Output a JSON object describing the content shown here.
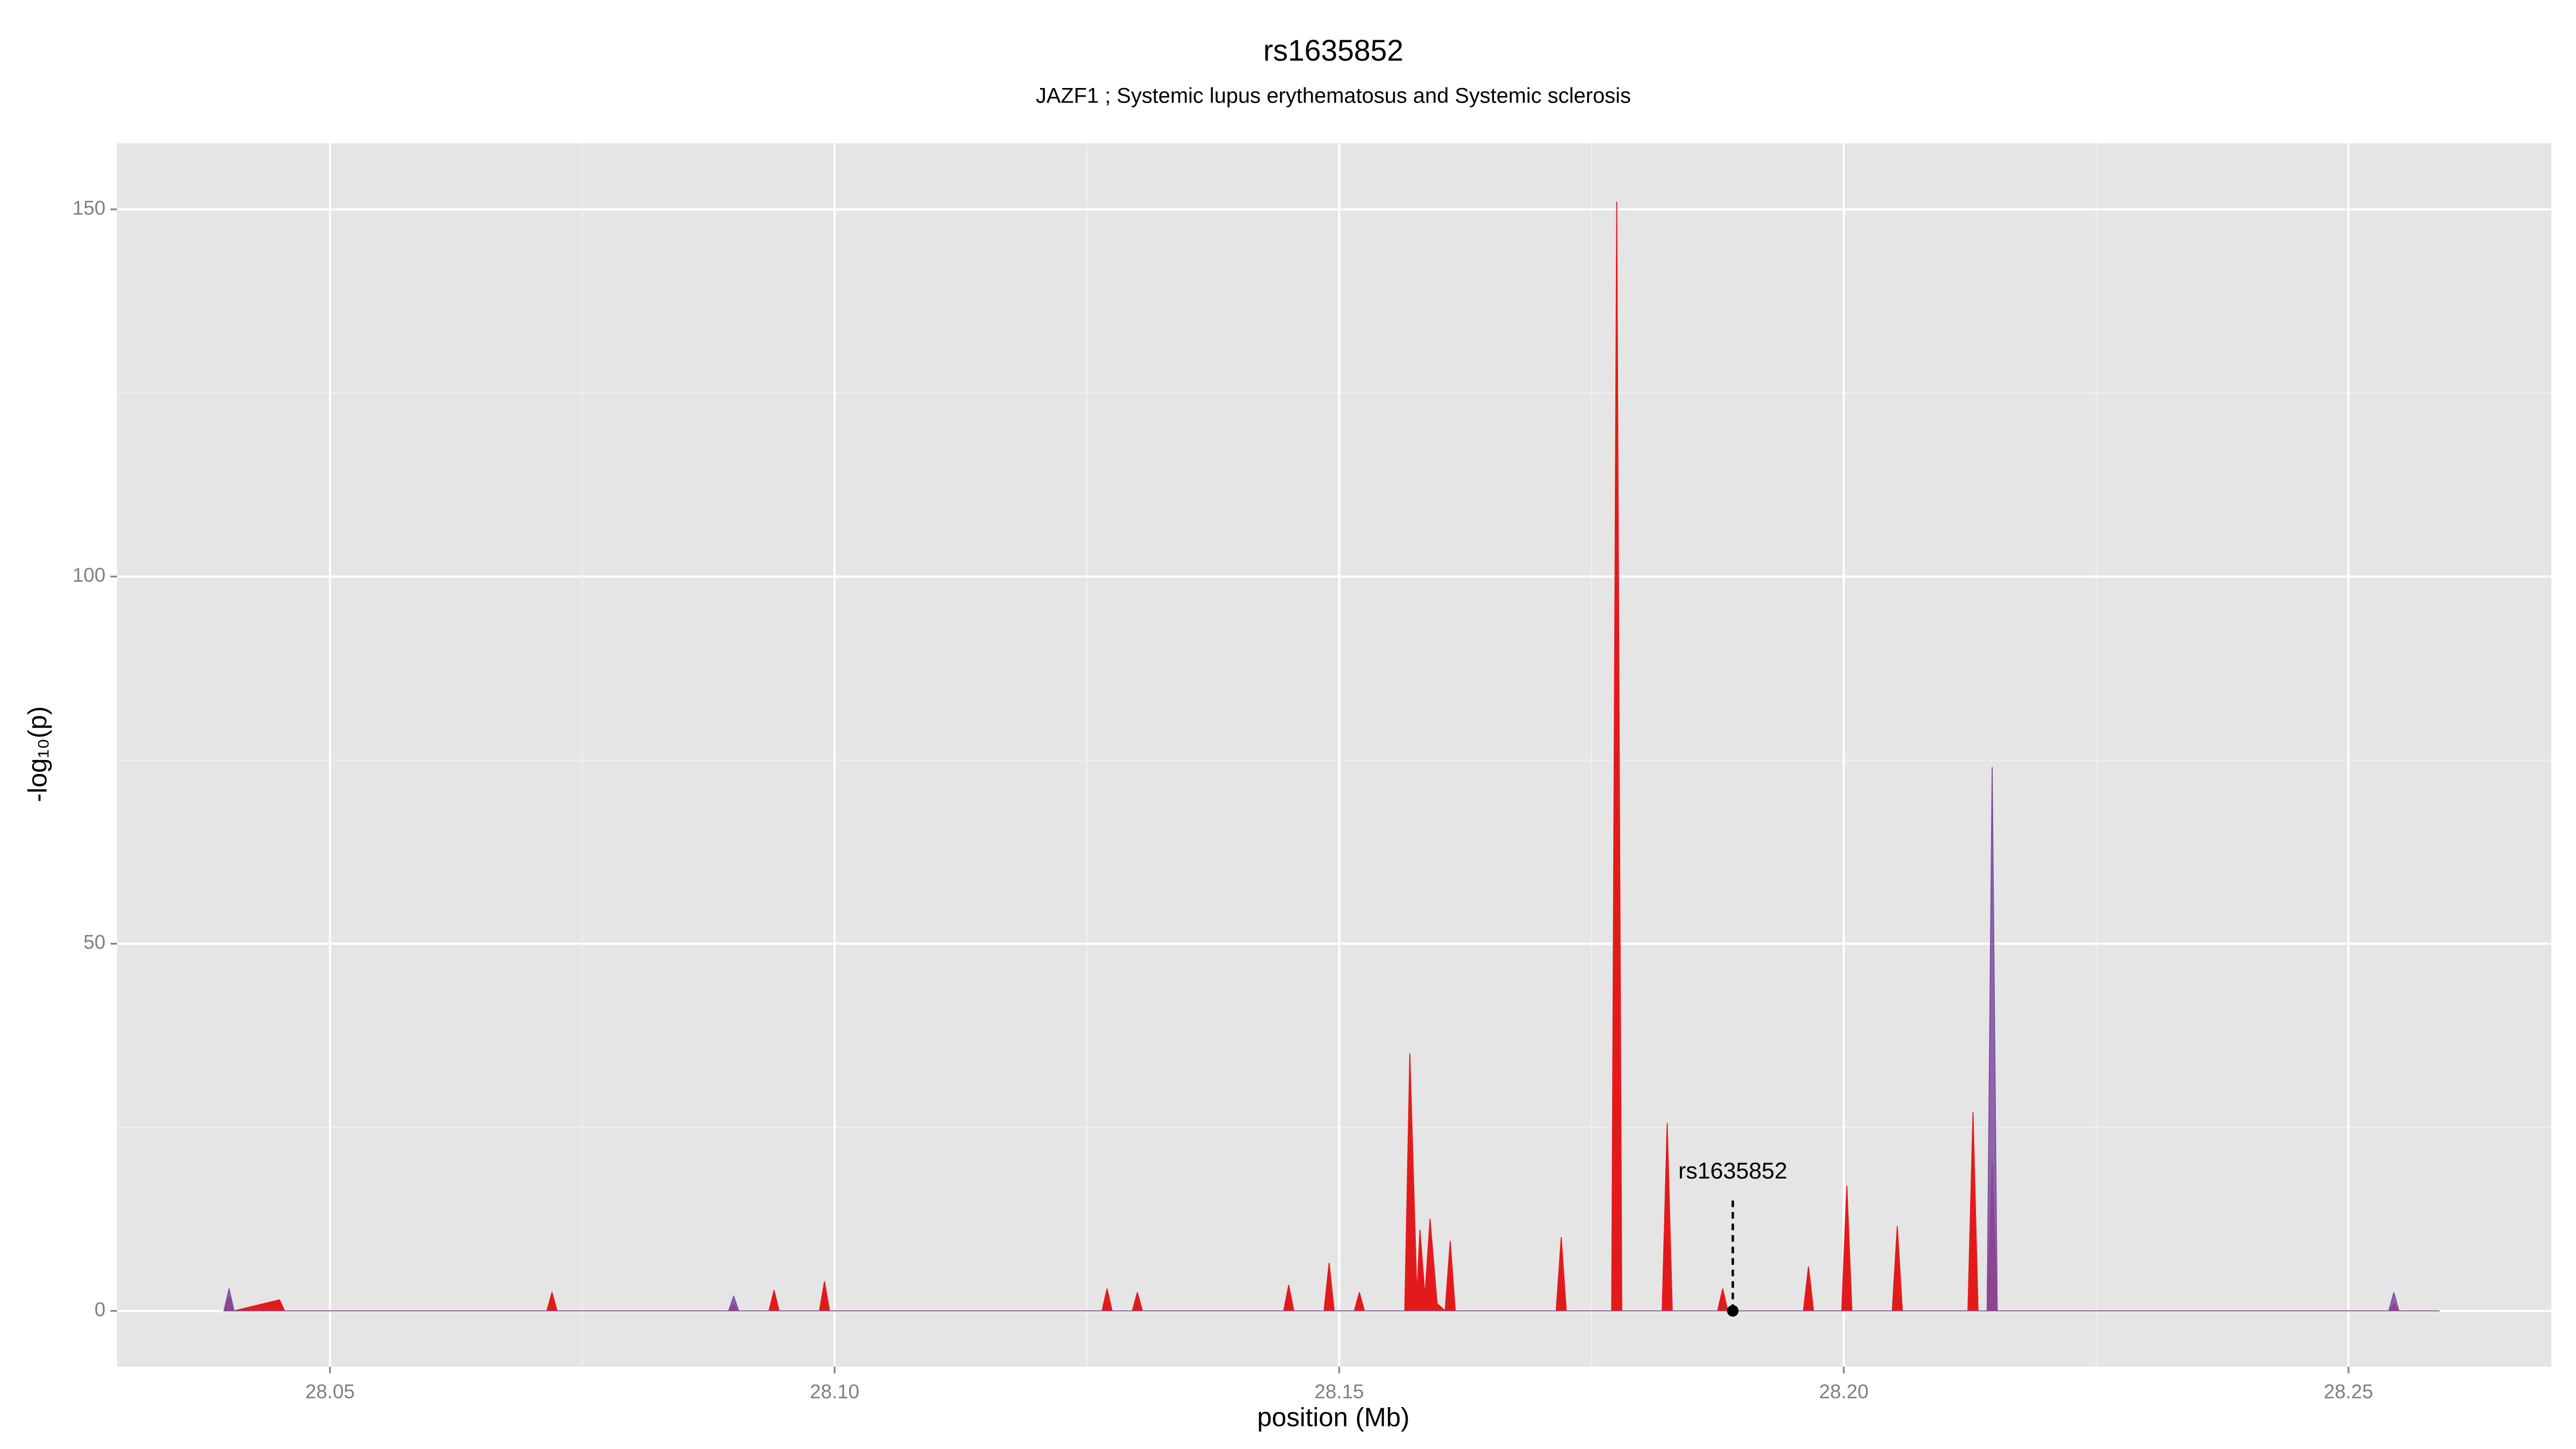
{
  "chart_data": {
    "type": "area",
    "title": "rs1635852",
    "subtitle": "JAZF1 ; Systemic lupus erythematosus and Systemic sclerosis",
    "xlabel": "position (Mb)",
    "ylabel": "-log₁₀(p)",
    "xlim": [
      28.0289,
      28.2701
    ],
    "ylim": [
      -7.6,
      159
    ],
    "xticks": [
      28.05,
      {
        "value": 28.1,
        "label": "28.10"
      },
      28.15,
      {
        "value": 28.2,
        "label": "28.20"
      },
      28.25
    ],
    "yticks": [
      0,
      50,
      100,
      150
    ],
    "grid": true,
    "x": [
      28.0395,
      28.04,
      28.0405,
      28.045,
      28.0455,
      28.0715,
      28.072,
      28.0725,
      28.0895,
      28.09,
      28.0905,
      28.0935,
      28.094,
      28.0945,
      28.0985,
      28.099,
      28.0995,
      28.1265,
      28.127,
      28.1275,
      28.1295,
      28.13,
      28.1305,
      28.1445,
      28.145,
      28.1455,
      28.1485,
      28.149,
      28.1495,
      28.1515,
      28.152,
      28.1525,
      28.1565,
      28.157,
      28.1577,
      28.158,
      28.1585,
      28.159,
      28.1597,
      28.1605,
      28.161,
      28.1615,
      28.1715,
      28.172,
      28.1725,
      28.177,
      28.1775,
      28.178,
      28.182,
      28.1825,
      28.183,
      28.1875,
      28.188,
      28.1885,
      28.196,
      28.1965,
      28.197,
      28.1998,
      28.2003,
      28.2008,
      28.2048,
      28.2053,
      28.2058,
      28.2123,
      28.2128,
      28.2133,
      28.2142,
      28.2147,
      28.2152,
      28.254,
      28.2545,
      28.255,
      28.259
    ],
    "series": [
      {
        "color": "#e31a1c",
        "values": [
          0,
          2,
          0,
          1.5,
          0,
          0,
          2.5,
          0,
          0,
          1,
          0,
          0,
          2.8,
          0,
          0,
          4,
          0,
          0,
          3,
          0,
          0,
          2.5,
          0,
          0,
          3.5,
          0,
          0,
          6.5,
          0,
          0,
          2.5,
          0,
          0,
          35,
          2,
          11,
          2,
          12.5,
          1,
          0,
          9.5,
          0,
          0,
          10,
          0,
          0,
          151,
          0,
          0,
          25.5,
          0,
          0,
          3,
          0,
          0,
          6,
          0,
          0,
          17,
          0,
          0,
          11.5,
          0,
          0,
          27,
          0,
          0,
          20,
          0,
          0,
          1,
          0,
          0
        ]
      },
      {
        "color": "#7e4ea3",
        "values": [
          0,
          3,
          0,
          0,
          0,
          0,
          0,
          0,
          0,
          2,
          0,
          0,
          0,
          0,
          0,
          0,
          0,
          0,
          0,
          0,
          0,
          0,
          0,
          0,
          0,
          0,
          0,
          0,
          0,
          0,
          0,
          0,
          0,
          0,
          0,
          0,
          0,
          0,
          0,
          0,
          0,
          0,
          0,
          0,
          0,
          0,
          0,
          0,
          0,
          0,
          0,
          0,
          0,
          0,
          0,
          0,
          0,
          0,
          0,
          0,
          0,
          0,
          0,
          0,
          0,
          0,
          0,
          74,
          0,
          0,
          2.5,
          0,
          0
        ]
      }
    ],
    "annotation": {
      "text": "rs1635852",
      "x": 28.189,
      "y": 0
    }
  }
}
